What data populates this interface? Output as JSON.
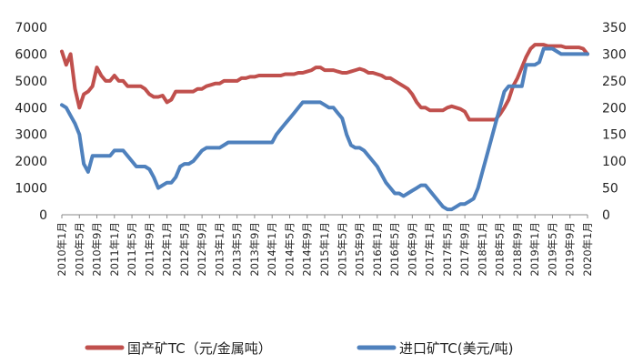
{
  "chart_data": {
    "type": "line",
    "title": "",
    "xlabel": "",
    "ylabel_left": "",
    "ylabel_right": "",
    "grid": false,
    "legend_position": "bottom",
    "ylim_left": [
      0,
      7000
    ],
    "yticks_left": [
      "0",
      "1000",
      "2000",
      "3000",
      "4000",
      "5000",
      "6000",
      "7000"
    ],
    "ylim_right": [
      0,
      350
    ],
    "yticks_right": [
      "0",
      "50",
      "100",
      "150",
      "200",
      "250",
      "300",
      "350"
    ],
    "xlim": [
      0,
      120
    ],
    "x_tick_labels": [
      "2010年1月",
      "2010年5月",
      "2010年9月",
      "2011年1月",
      "2011年5月",
      "2011年9月",
      "2012年1月",
      "2012年5月",
      "2012年9月",
      "2013年1月",
      "2013年5月",
      "2013年9月",
      "2014年1月",
      "2014年5月",
      "2014年9月",
      "2015年1月",
      "2015年5月",
      "2015年9月",
      "2016年1月",
      "2016年5月",
      "2016年9月",
      "2017年1月",
      "2017年5月",
      "2017年9月",
      "2018年1月",
      "2018年5月",
      "2018年9月",
      "2019年1月",
      "2019年5月",
      "2019年9月",
      "2020年1月"
    ],
    "series": [
      {
        "name": "国产矿TC（元/金属吨）",
        "axis": "left",
        "color": "#c0504d",
        "points": [
          [
            0,
            6100
          ],
          [
            1,
            5600
          ],
          [
            2,
            6000
          ],
          [
            3,
            4700
          ],
          [
            4,
            4000
          ],
          [
            5,
            4500
          ],
          [
            6,
            4600
          ],
          [
            7,
            4800
          ],
          [
            8,
            5500
          ],
          [
            9,
            5200
          ],
          [
            10,
            5000
          ],
          [
            11,
            5000
          ],
          [
            12,
            5200
          ],
          [
            13,
            5000
          ],
          [
            14,
            5000
          ],
          [
            15,
            4800
          ],
          [
            16,
            4800
          ],
          [
            17,
            4800
          ],
          [
            18,
            4800
          ],
          [
            19,
            4700
          ],
          [
            20,
            4500
          ],
          [
            21,
            4400
          ],
          [
            22,
            4400
          ],
          [
            23,
            4450
          ],
          [
            24,
            4200
          ],
          [
            25,
            4300
          ],
          [
            26,
            4600
          ],
          [
            27,
            4600
          ],
          [
            28,
            4600
          ],
          [
            29,
            4600
          ],
          [
            30,
            4600
          ],
          [
            31,
            4700
          ],
          [
            32,
            4700
          ],
          [
            33,
            4800
          ],
          [
            34,
            4850
          ],
          [
            35,
            4900
          ],
          [
            36,
            4900
          ],
          [
            37,
            5000
          ],
          [
            38,
            5000
          ],
          [
            39,
            5000
          ],
          [
            40,
            5000
          ],
          [
            41,
            5100
          ],
          [
            42,
            5100
          ],
          [
            43,
            5150
          ],
          [
            44,
            5150
          ],
          [
            45,
            5200
          ],
          [
            46,
            5200
          ],
          [
            47,
            5200
          ],
          [
            48,
            5200
          ],
          [
            49,
            5200
          ],
          [
            50,
            5200
          ],
          [
            51,
            5250
          ],
          [
            52,
            5250
          ],
          [
            53,
            5250
          ],
          [
            54,
            5300
          ],
          [
            55,
            5300
          ],
          [
            56,
            5350
          ],
          [
            57,
            5400
          ],
          [
            58,
            5500
          ],
          [
            59,
            5500
          ],
          [
            60,
            5400
          ],
          [
            61,
            5400
          ],
          [
            62,
            5400
          ],
          [
            63,
            5350
          ],
          [
            64,
            5300
          ],
          [
            65,
            5300
          ],
          [
            66,
            5350
          ],
          [
            67,
            5400
          ],
          [
            68,
            5450
          ],
          [
            69,
            5400
          ],
          [
            70,
            5300
          ],
          [
            71,
            5300
          ],
          [
            72,
            5250
          ],
          [
            73,
            5200
          ],
          [
            74,
            5100
          ],
          [
            75,
            5100
          ],
          [
            76,
            5000
          ],
          [
            77,
            4900
          ],
          [
            78,
            4800
          ],
          [
            79,
            4700
          ],
          [
            80,
            4500
          ],
          [
            81,
            4200
          ],
          [
            82,
            4000
          ],
          [
            83,
            4000
          ],
          [
            84,
            3900
          ],
          [
            85,
            3900
          ],
          [
            86,
            3900
          ],
          [
            87,
            3900
          ],
          [
            88,
            4000
          ],
          [
            89,
            4050
          ],
          [
            90,
            4000
          ],
          [
            91,
            3950
          ],
          [
            92,
            3850
          ],
          [
            93,
            3550
          ],
          [
            94,
            3550
          ],
          [
            95,
            3550
          ],
          [
            96,
            3550
          ],
          [
            97,
            3550
          ],
          [
            98,
            3550
          ],
          [
            99,
            3550
          ],
          [
            100,
            3750
          ],
          [
            101,
            4000
          ],
          [
            102,
            4300
          ],
          [
            103,
            4800
          ],
          [
            104,
            5100
          ],
          [
            105,
            5500
          ],
          [
            106,
            5900
          ],
          [
            107,
            6200
          ],
          [
            108,
            6350
          ],
          [
            109,
            6350
          ],
          [
            110,
            6350
          ],
          [
            111,
            6300
          ],
          [
            112,
            6300
          ],
          [
            113,
            6300
          ],
          [
            114,
            6300
          ],
          [
            115,
            6250
          ],
          [
            116,
            6250
          ],
          [
            117,
            6250
          ],
          [
            118,
            6250
          ],
          [
            119,
            6200
          ],
          [
            120,
            6000
          ]
        ]
      },
      {
        "name": "进口矿TC(美元/吨)",
        "axis": "right",
        "color": "#4f81bd",
        "points": [
          [
            0,
            205
          ],
          [
            1,
            200
          ],
          [
            2,
            185
          ],
          [
            3,
            170
          ],
          [
            4,
            150
          ],
          [
            5,
            95
          ],
          [
            6,
            80
          ],
          [
            7,
            110
          ],
          [
            8,
            110
          ],
          [
            9,
            110
          ],
          [
            10,
            110
          ],
          [
            11,
            110
          ],
          [
            12,
            120
          ],
          [
            13,
            120
          ],
          [
            14,
            120
          ],
          [
            15,
            110
          ],
          [
            16,
            100
          ],
          [
            17,
            90
          ],
          [
            18,
            90
          ],
          [
            19,
            90
          ],
          [
            20,
            85
          ],
          [
            21,
            70
          ],
          [
            22,
            50
          ],
          [
            23,
            55
          ],
          [
            24,
            60
          ],
          [
            25,
            60
          ],
          [
            26,
            70
          ],
          [
            27,
            90
          ],
          [
            28,
            95
          ],
          [
            29,
            95
          ],
          [
            30,
            100
          ],
          [
            31,
            110
          ],
          [
            32,
            120
          ],
          [
            33,
            125
          ],
          [
            34,
            125
          ],
          [
            35,
            125
          ],
          [
            36,
            125
          ],
          [
            37,
            130
          ],
          [
            38,
            135
          ],
          [
            39,
            135
          ],
          [
            40,
            135
          ],
          [
            41,
            135
          ],
          [
            42,
            135
          ],
          [
            43,
            135
          ],
          [
            44,
            135
          ],
          [
            45,
            135
          ],
          [
            46,
            135
          ],
          [
            47,
            135
          ],
          [
            48,
            135
          ],
          [
            49,
            150
          ],
          [
            50,
            160
          ],
          [
            51,
            170
          ],
          [
            52,
            180
          ],
          [
            53,
            190
          ],
          [
            54,
            200
          ],
          [
            55,
            210
          ],
          [
            56,
            210
          ],
          [
            57,
            210
          ],
          [
            58,
            210
          ],
          [
            59,
            210
          ],
          [
            60,
            205
          ],
          [
            61,
            200
          ],
          [
            62,
            200
          ],
          [
            63,
            190
          ],
          [
            64,
            180
          ],
          [
            65,
            150
          ],
          [
            66,
            130
          ],
          [
            67,
            125
          ],
          [
            68,
            125
          ],
          [
            69,
            120
          ],
          [
            70,
            110
          ],
          [
            71,
            100
          ],
          [
            72,
            90
          ],
          [
            73,
            75
          ],
          [
            74,
            60
          ],
          [
            75,
            50
          ],
          [
            76,
            40
          ],
          [
            77,
            40
          ],
          [
            78,
            35
          ],
          [
            79,
            40
          ],
          [
            80,
            45
          ],
          [
            81,
            50
          ],
          [
            82,
            55
          ],
          [
            83,
            55
          ],
          [
            84,
            45
          ],
          [
            85,
            35
          ],
          [
            86,
            25
          ],
          [
            87,
            15
          ],
          [
            88,
            10
          ],
          [
            89,
            10
          ],
          [
            90,
            15
          ],
          [
            91,
            20
          ],
          [
            92,
            20
          ],
          [
            93,
            25
          ],
          [
            94,
            30
          ],
          [
            95,
            50
          ],
          [
            96,
            80
          ],
          [
            97,
            110
          ],
          [
            98,
            140
          ],
          [
            99,
            170
          ],
          [
            100,
            200
          ],
          [
            101,
            230
          ],
          [
            102,
            240
          ],
          [
            103,
            240
          ],
          [
            104,
            240
          ],
          [
            105,
            240
          ],
          [
            106,
            280
          ],
          [
            107,
            280
          ],
          [
            108,
            280
          ],
          [
            109,
            285
          ],
          [
            110,
            310
          ],
          [
            111,
            310
          ],
          [
            112,
            310
          ],
          [
            113,
            305
          ],
          [
            114,
            300
          ],
          [
            115,
            300
          ],
          [
            116,
            300
          ],
          [
            117,
            300
          ],
          [
            118,
            300
          ],
          [
            119,
            300
          ],
          [
            120,
            300
          ]
        ]
      }
    ]
  }
}
